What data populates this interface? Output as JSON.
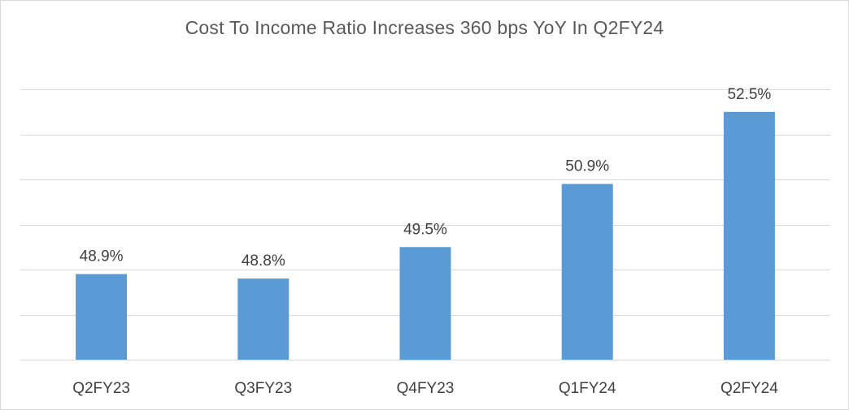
{
  "chart_data": {
    "type": "bar",
    "title": "Cost To Income Ratio Increases 360 bps YoY In Q2FY24",
    "categories": [
      "Q2FY23",
      "Q3FY23",
      "Q4FY23",
      "Q1FY24",
      "Q2FY24"
    ],
    "values": [
      48.9,
      48.8,
      49.5,
      50.9,
      52.5
    ],
    "data_labels": [
      "48.9%",
      "48.8%",
      "49.5%",
      "50.9%",
      "52.5%"
    ],
    "ylim": [
      47.0,
      53.0
    ],
    "y_gridlines": [
      47.0,
      48.0,
      49.0,
      50.0,
      51.0,
      52.0,
      53.0
    ],
    "y_axis_labels_visible": false,
    "grid": true,
    "legend": "none",
    "colors": {
      "bar": "#5b9bd5",
      "grid": "#d9d9d9",
      "text": "#404040",
      "title": "#595959"
    }
  }
}
